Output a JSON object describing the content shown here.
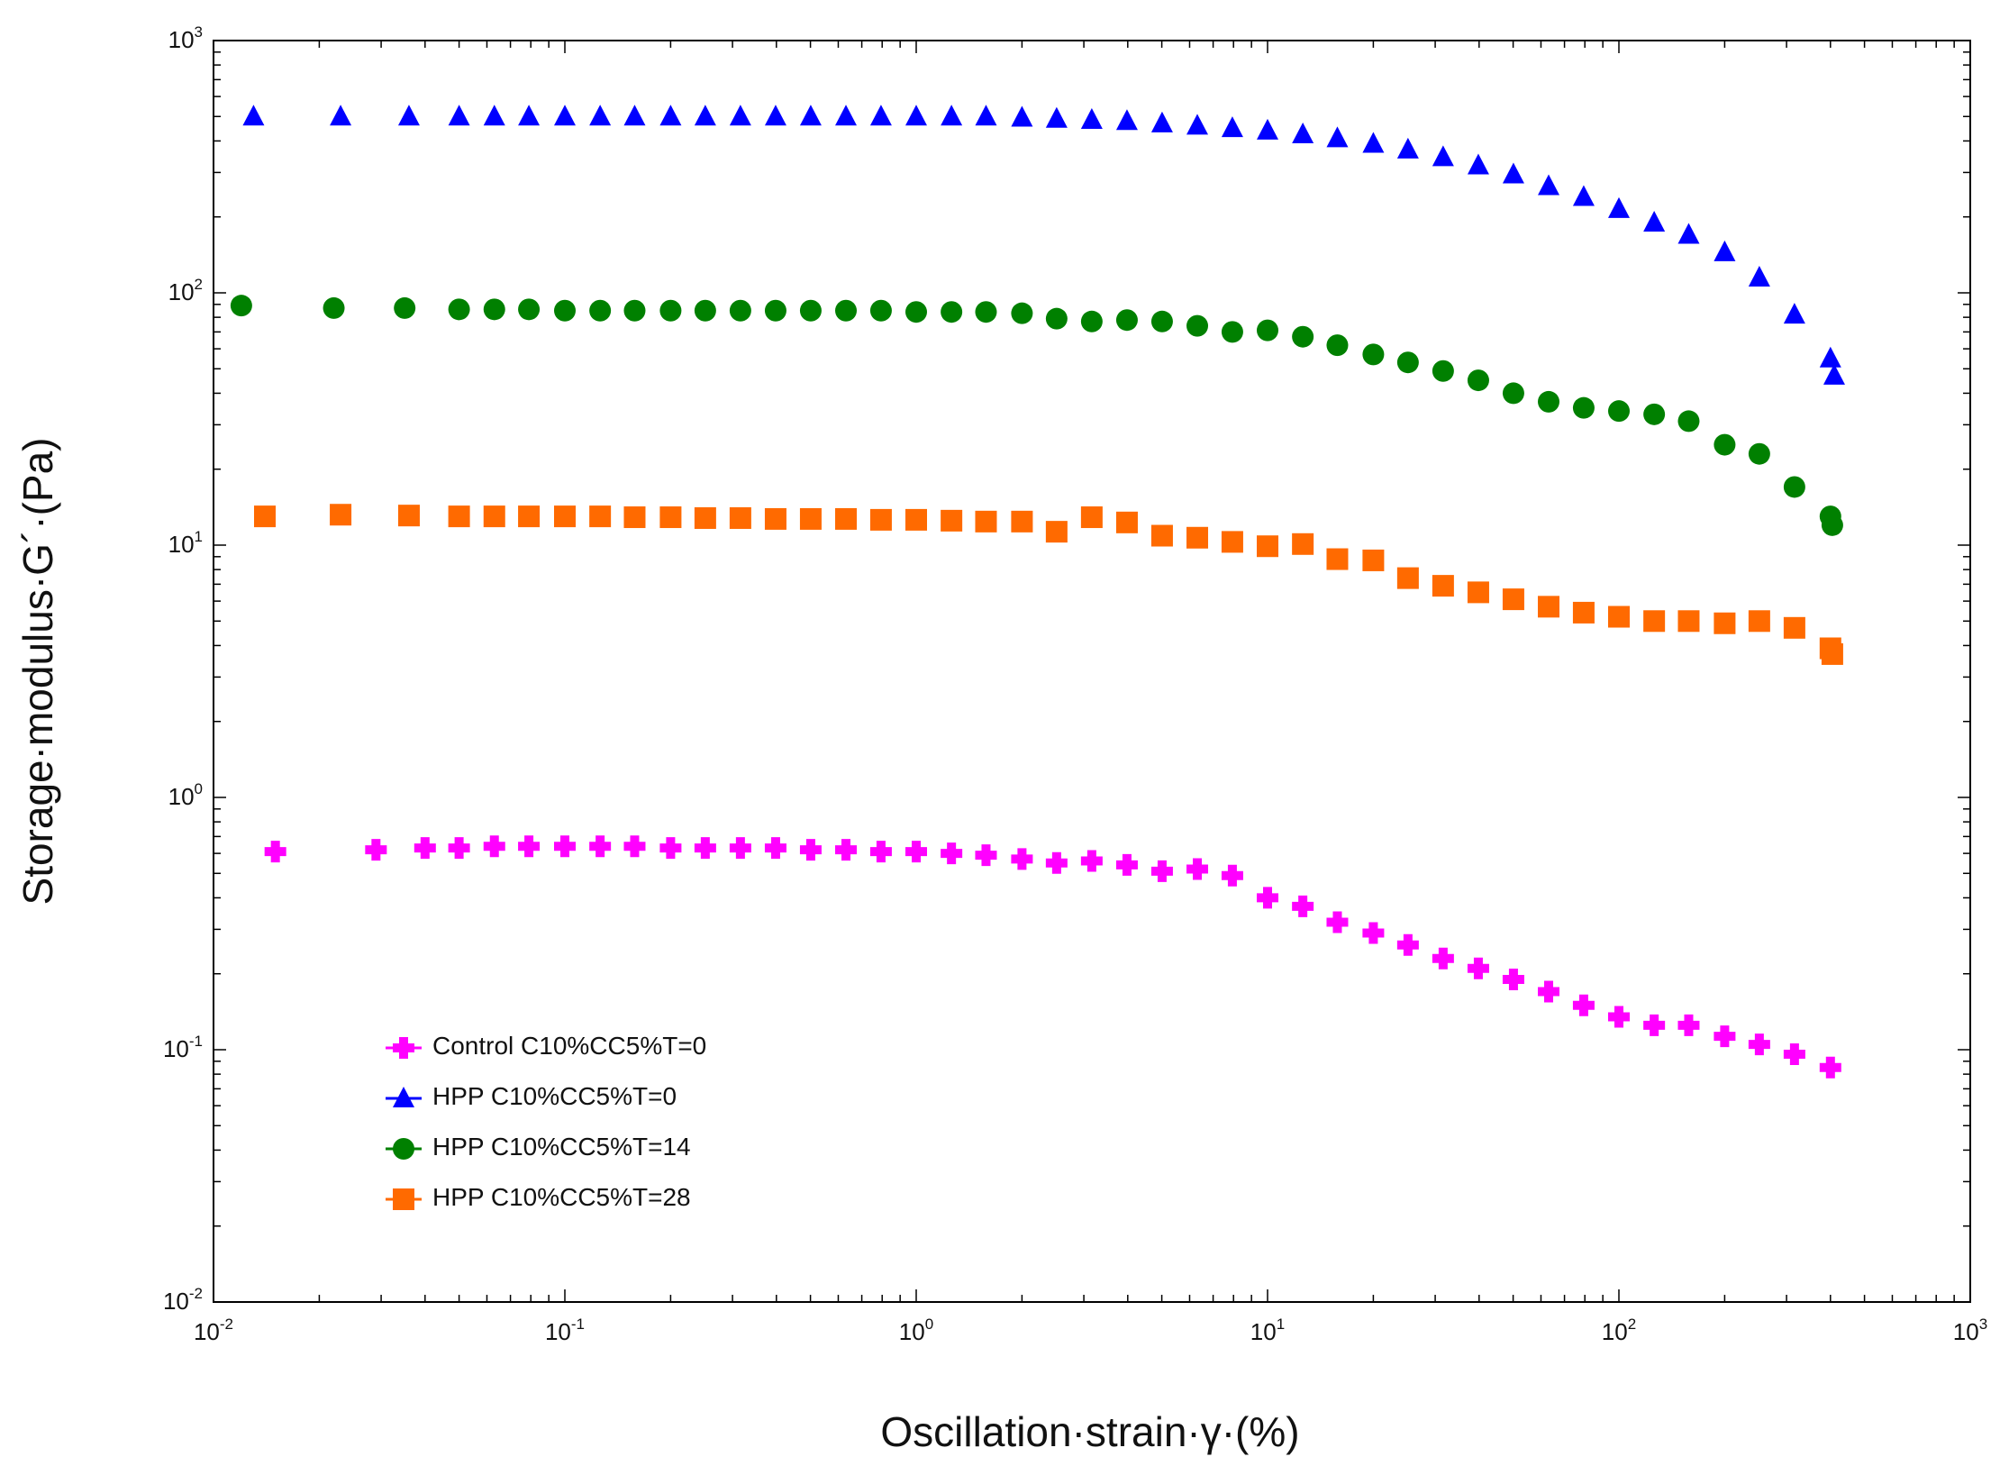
{
  "chart_data": {
    "type": "scatter",
    "title": "",
    "xlabel": "Oscillation·strain·γ·(%)",
    "ylabel": "Storage·modulus·G´·(Pa)",
    "xscale": "log",
    "yscale": "log",
    "xlim": [
      0.01,
      1000
    ],
    "ylim": [
      0.01,
      1000
    ],
    "x_ticks": [
      {
        "value": 0.01,
        "base": "10",
        "exp": "-2"
      },
      {
        "value": 0.1,
        "base": "10",
        "exp": "-1"
      },
      {
        "value": 1,
        "base": "10",
        "exp": "0"
      },
      {
        "value": 10,
        "base": "10",
        "exp": "1"
      },
      {
        "value": 100,
        "base": "10",
        "exp": "2"
      },
      {
        "value": 1000,
        "base": "10",
        "exp": "3"
      }
    ],
    "y_ticks": [
      {
        "value": 0.01,
        "base": "10",
        "exp": "-2"
      },
      {
        "value": 0.1,
        "base": "10",
        "exp": "-1"
      },
      {
        "value": 1,
        "base": "10",
        "exp": "0"
      },
      {
        "value": 10,
        "base": "10",
        "exp": "1"
      },
      {
        "value": 100,
        "base": "10",
        "exp": "2"
      },
      {
        "value": 1000,
        "base": "10",
        "exp": "3"
      }
    ],
    "legend_position": "lower-left",
    "series": [
      {
        "name": "Control C10%CC5%T=0",
        "marker": "cross",
        "color": "#ff00ff",
        "x": [
          0.015,
          0.029,
          0.04,
          0.05,
          0.063,
          0.079,
          0.1,
          0.126,
          0.158,
          0.2,
          0.251,
          0.316,
          0.398,
          0.501,
          0.631,
          0.794,
          1.0,
          1.26,
          1.58,
          2.0,
          2.51,
          3.16,
          3.98,
          5.01,
          6.31,
          7.94,
          10.0,
          12.6,
          15.8,
          20.0,
          25.1,
          31.6,
          39.8,
          50.1,
          63.1,
          79.4,
          100,
          126,
          158,
          200,
          251,
          316,
          400
        ],
        "y": [
          0.61,
          0.62,
          0.63,
          0.63,
          0.64,
          0.64,
          0.64,
          0.64,
          0.64,
          0.63,
          0.63,
          0.63,
          0.63,
          0.62,
          0.62,
          0.61,
          0.61,
          0.6,
          0.59,
          0.57,
          0.55,
          0.56,
          0.54,
          0.51,
          0.52,
          0.49,
          0.4,
          0.37,
          0.32,
          0.29,
          0.26,
          0.23,
          0.21,
          0.19,
          0.17,
          0.15,
          0.135,
          0.125,
          0.125,
          0.113,
          0.105,
          0.096,
          0.085
        ]
      },
      {
        "name": "HPP C10%CC5%T=0",
        "marker": "triangle",
        "color": "#0000ff",
        "x": [
          0.013,
          0.023,
          0.036,
          0.05,
          0.063,
          0.079,
          0.1,
          0.126,
          0.158,
          0.2,
          0.251,
          0.316,
          0.398,
          0.501,
          0.631,
          0.794,
          1.0,
          1.26,
          1.58,
          2.0,
          2.51,
          3.16,
          3.98,
          5.01,
          6.31,
          7.94,
          10.0,
          12.6,
          15.8,
          20.0,
          25.1,
          31.6,
          39.8,
          50.1,
          63.1,
          79.4,
          100,
          126,
          158,
          200,
          251,
          316,
          400,
          410
        ],
        "y": [
          500,
          500,
          500,
          500,
          500,
          500,
          500,
          500,
          500,
          500,
          500,
          500,
          500,
          500,
          500,
          500,
          500,
          500,
          500,
          495,
          490,
          485,
          480,
          470,
          460,
          450,
          440,
          425,
          410,
          390,
          370,
          345,
          320,
          295,
          265,
          240,
          215,
          190,
          170,
          145,
          115,
          82,
          55,
          47
        ]
      },
      {
        "name": "HPP C10%CC5%T=14",
        "marker": "circle",
        "color": "#008000",
        "x": [
          0.012,
          0.022,
          0.035,
          0.05,
          0.063,
          0.079,
          0.1,
          0.126,
          0.158,
          0.2,
          0.251,
          0.316,
          0.398,
          0.501,
          0.631,
          0.794,
          1.0,
          1.26,
          1.58,
          2.0,
          2.51,
          3.16,
          3.98,
          5.01,
          6.31,
          7.94,
          10.0,
          12.6,
          15.8,
          20.0,
          25.1,
          31.6,
          39.8,
          50.1,
          63.1,
          79.4,
          100,
          126,
          158,
          200,
          251,
          316,
          400,
          405
        ],
        "y": [
          89,
          87,
          87,
          86,
          86,
          86,
          85,
          85,
          85,
          85,
          85,
          85,
          85,
          85,
          85,
          85,
          84,
          84,
          84,
          83,
          79,
          77,
          78,
          77,
          74,
          70,
          71,
          67,
          62,
          57,
          53,
          49,
          45,
          40,
          37,
          35,
          34,
          33,
          31,
          25,
          23,
          17,
          13,
          12
        ]
      },
      {
        "name": "HPP C10%CC5%T=28",
        "marker": "square",
        "color": "#ff6a00",
        "x": [
          0.014,
          0.023,
          0.036,
          0.05,
          0.063,
          0.079,
          0.1,
          0.126,
          0.158,
          0.2,
          0.251,
          0.316,
          0.398,
          0.501,
          0.631,
          0.794,
          1.0,
          1.26,
          1.58,
          2.0,
          2.51,
          3.16,
          3.98,
          5.01,
          6.31,
          7.94,
          10.0,
          12.6,
          15.8,
          20.0,
          25.1,
          31.6,
          39.8,
          50.1,
          63.1,
          79.4,
          100,
          126,
          158,
          200,
          251,
          316,
          400,
          405
        ],
        "y": [
          13.0,
          13.2,
          13.1,
          13.0,
          13.0,
          13.0,
          13.0,
          13.0,
          12.9,
          12.9,
          12.8,
          12.8,
          12.7,
          12.7,
          12.7,
          12.6,
          12.6,
          12.5,
          12.4,
          12.4,
          11.3,
          12.9,
          12.3,
          10.9,
          10.7,
          10.3,
          9.9,
          10.1,
          8.8,
          8.7,
          7.4,
          6.9,
          6.5,
          6.1,
          5.7,
          5.4,
          5.2,
          5.0,
          5.0,
          4.9,
          5.0,
          4.7,
          3.9,
          3.7
        ]
      }
    ]
  }
}
